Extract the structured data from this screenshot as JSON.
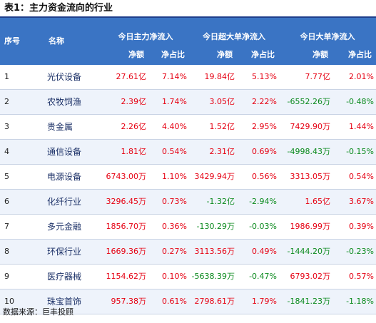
{
  "title": "表1：主力资金流向的行业",
  "header": {
    "seq": "序号",
    "name": "名称",
    "groups": [
      "今日主力净流入",
      "今日超大单净流入",
      "今日大单净流入"
    ],
    "sub_net": "净额",
    "sub_ratio": "净占比"
  },
  "rows": [
    {
      "idx": "1",
      "name": "光伏设备",
      "values": [
        "27.61亿",
        "7.14%",
        "19.84亿",
        "5.13%",
        "7.77亿",
        "2.01%"
      ]
    },
    {
      "idx": "2",
      "name": "农牧饲渔",
      "values": [
        "2.39亿",
        "1.74%",
        "3.05亿",
        "2.22%",
        "-6552.26万",
        "-0.48%"
      ]
    },
    {
      "idx": "3",
      "name": "贵金属",
      "values": [
        "2.26亿",
        "4.40%",
        "1.52亿",
        "2.95%",
        "7429.90万",
        "1.44%"
      ]
    },
    {
      "idx": "4",
      "name": "通信设备",
      "values": [
        "1.81亿",
        "0.54%",
        "2.31亿",
        "0.69%",
        "-4998.43万",
        "-0.15%"
      ]
    },
    {
      "idx": "5",
      "name": "电源设备",
      "values": [
        "6743.00万",
        "1.10%",
        "3429.94万",
        "0.56%",
        "3313.05万",
        "0.54%"
      ]
    },
    {
      "idx": "6",
      "name": "化纤行业",
      "values": [
        "3296.45万",
        "0.73%",
        "-1.32亿",
        "-2.94%",
        "1.65亿",
        "3.67%"
      ]
    },
    {
      "idx": "7",
      "name": "多元金融",
      "values": [
        "1856.70万",
        "0.36%",
        "-130.29万",
        "-0.03%",
        "1986.99万",
        "0.39%"
      ]
    },
    {
      "idx": "8",
      "name": "环保行业",
      "values": [
        "1669.36万",
        "0.27%",
        "3113.56万",
        "0.49%",
        "-1444.20万",
        "-0.23%"
      ]
    },
    {
      "idx": "9",
      "name": "医疗器械",
      "values": [
        "1154.62万",
        "0.10%",
        "-5638.39万",
        "-0.47%",
        "6793.02万",
        "0.57%"
      ]
    },
    {
      "idx": "10",
      "name": "珠宝首饰",
      "values": [
        "957.38万",
        "0.61%",
        "2798.61万",
        "1.79%",
        "-1841.23万",
        "-1.18%"
      ]
    }
  ],
  "source": "数据来源：巨丰投顾",
  "colors": {
    "header_bg": "#3a74c4",
    "positive": "#e60012",
    "negative": "#0b8a1e",
    "alt_row": "#eef3fb"
  }
}
